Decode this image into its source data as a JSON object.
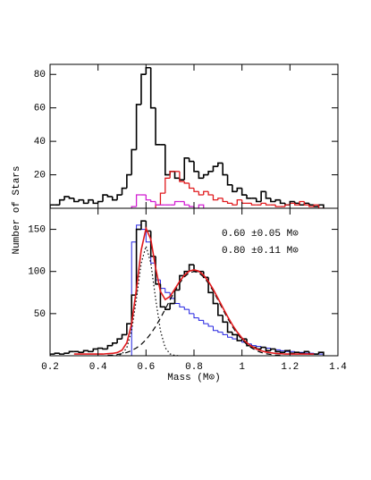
{
  "chart_data": [
    {
      "type": "histogram",
      "ylabel": "Number of Stars",
      "xlim": [
        0.2,
        1.4
      ],
      "xticks": [
        0.2,
        0.4,
        0.6,
        0.8,
        1,
        1.2,
        1.4
      ],
      "xticklabels": false,
      "ylim": [
        0,
        86
      ],
      "yticks": [
        20,
        40,
        60,
        80
      ],
      "series": [
        {
          "color": "#000000",
          "width": 1.6,
          "bins": [
            0.2,
            0.22,
            0.24,
            0.26,
            0.28,
            0.3,
            0.32,
            0.34,
            0.36,
            0.38,
            0.4,
            0.42,
            0.44,
            0.46,
            0.48,
            0.5,
            0.52,
            0.54,
            0.56,
            0.58,
            0.6,
            0.62,
            0.64,
            0.66,
            0.68,
            0.7,
            0.72,
            0.74,
            0.76,
            0.78,
            0.8,
            0.82,
            0.84,
            0.86,
            0.88,
            0.9,
            0.92,
            0.94,
            0.96,
            0.98,
            1,
            1.02,
            1.04,
            1.06,
            1.08,
            1.1,
            1.12,
            1.14,
            1.16,
            1.18,
            1.2,
            1.22,
            1.24,
            1.26,
            1.28,
            1.3,
            1.32,
            1.34
          ],
          "values": [
            2,
            2,
            5,
            7,
            6,
            4,
            5,
            3,
            5,
            3,
            4,
            8,
            7,
            5,
            8,
            12,
            20,
            35,
            62,
            80,
            84,
            60,
            38,
            38,
            20,
            22,
            18,
            17,
            30,
            28,
            22,
            18,
            20,
            22,
            25,
            27,
            20,
            14,
            10,
            12,
            8,
            6,
            6,
            4,
            10,
            6,
            4,
            5,
            3,
            2,
            4,
            3,
            2,
            3,
            2,
            1,
            2
          ]
        },
        {
          "color": "#e0191c",
          "width": 1.3,
          "bins": [
            0.64,
            0.66,
            0.68,
            0.7,
            0.72,
            0.74,
            0.76,
            0.78,
            0.8,
            0.82,
            0.84,
            0.86,
            0.88,
            0.9,
            0.92,
            0.94,
            0.96,
            0.98,
            1,
            1.02,
            1.04,
            1.06,
            1.08,
            1.1,
            1.12,
            1.14,
            1.16,
            1.18,
            1.2,
            1.22,
            1.24,
            1.26,
            1.28,
            1.3,
            1.32,
            1.34
          ],
          "values": [
            2,
            9,
            18,
            22,
            22,
            16,
            15,
            12,
            10,
            8,
            10,
            8,
            5,
            6,
            4,
            3,
            2,
            5,
            3,
            3,
            2,
            2,
            3,
            2,
            2,
            1,
            1,
            2,
            3,
            2,
            4,
            2,
            1,
            2,
            0
          ]
        },
        {
          "color": "#d21fd2",
          "width": 1.3,
          "bins": [
            0.54,
            0.56,
            0.58,
            0.6,
            0.62,
            0.64,
            0.66,
            0.68,
            0.7,
            0.72,
            0.74,
            0.76,
            0.78,
            0.8,
            0.82,
            0.84
          ],
          "values": [
            1,
            8,
            8,
            5,
            4,
            2,
            2,
            2,
            2,
            4,
            4,
            2,
            1,
            0,
            2
          ]
        }
      ]
    },
    {
      "type": "histogram",
      "xlabel": "Mass (M⊙)",
      "xlim": [
        0.2,
        1.4
      ],
      "xticks": [
        0.2,
        0.4,
        0.6,
        0.8,
        1,
        1.2,
        1.4
      ],
      "xticklabels": true,
      "ylim": [
        0,
        175
      ],
      "yticks": [
        50,
        100,
        150
      ],
      "annotations": [
        "0.60 ±0.05 M⊙",
        "0.80 ±0.11 M⊙"
      ],
      "series": [
        {
          "color": "#2020e0",
          "width": 1,
          "bins": [
            0.54,
            0.56,
            0.58,
            0.6,
            0.62,
            0.64,
            0.66,
            0.68,
            0.7,
            0.72,
            0.74,
            0.76,
            0.78,
            0.8,
            0.82,
            0.84,
            0.86,
            0.88,
            0.9,
            0.92,
            0.94,
            0.96,
            0.98,
            1,
            1.02,
            1.04,
            1.06,
            1.08,
            1.1,
            1.12,
            1.14,
            1.16,
            1.18,
            1.2,
            1.22,
            1.24,
            1.26,
            1.28,
            1.3,
            1.32,
            1.34
          ],
          "values": [
            135,
            155,
            150,
            135,
            110,
            90,
            80,
            75,
            68,
            62,
            58,
            55,
            50,
            45,
            42,
            38,
            35,
            30,
            28,
            25,
            22,
            20,
            18,
            16,
            14,
            12,
            11,
            10,
            9,
            8,
            7,
            6,
            5,
            5,
            4,
            4,
            3,
            3,
            2,
            2
          ]
        },
        {
          "color": "#000000",
          "width": 1.6,
          "bins": [
            0.2,
            0.22,
            0.24,
            0.26,
            0.28,
            0.3,
            0.32,
            0.34,
            0.36,
            0.38,
            0.4,
            0.42,
            0.44,
            0.46,
            0.48,
            0.5,
            0.52,
            0.54,
            0.56,
            0.58,
            0.6,
            0.62,
            0.64,
            0.66,
            0.68,
            0.7,
            0.72,
            0.74,
            0.76,
            0.78,
            0.8,
            0.82,
            0.84,
            0.86,
            0.88,
            0.9,
            0.92,
            0.94,
            0.96,
            0.98,
            1,
            1.02,
            1.04,
            1.06,
            1.08,
            1.1,
            1.12,
            1.14,
            1.16,
            1.18,
            1.2,
            1.22,
            1.24,
            1.26,
            1.28,
            1.3,
            1.32,
            1.34
          ],
          "values": [
            2,
            3,
            2,
            3,
            5,
            5,
            4,
            6,
            5,
            8,
            9,
            8,
            12,
            15,
            20,
            25,
            38,
            72,
            150,
            160,
            148,
            118,
            85,
            58,
            55,
            62,
            78,
            95,
            100,
            108,
            100,
            100,
            93,
            75,
            62,
            48,
            40,
            28,
            25,
            18,
            20,
            12,
            10,
            8,
            10,
            6,
            8,
            5,
            4,
            6,
            3,
            4,
            3,
            5,
            2,
            2,
            4
          ]
        },
        {
          "kind": "line",
          "style": "dotted",
          "color": "#000000",
          "width": 1.2,
          "x": [
            0.46,
            0.48,
            0.5,
            0.52,
            0.54,
            0.56,
            0.58,
            0.6,
            0.62,
            0.64,
            0.66,
            0.68,
            0.7,
            0.72,
            0.74
          ],
          "values": [
            0,
            0.3,
            2.2,
            9.5,
            29.9,
            67.6,
            110,
            130,
            110,
            67.6,
            29.9,
            9.5,
            2.2,
            0.3,
            0
          ]
        },
        {
          "kind": "line",
          "style": "dashed",
          "color": "#000000",
          "width": 1.2,
          "x": [
            0.44,
            0.46,
            0.48,
            0.5,
            0.52,
            0.54,
            0.56,
            0.58,
            0.6,
            0.62,
            0.64,
            0.66,
            0.68,
            0.7,
            0.72,
            0.74,
            0.76,
            0.78,
            0.8,
            0.82,
            0.84,
            0.86,
            0.88,
            0.9,
            0.92,
            0.94,
            0.96,
            0.98,
            1,
            1.02,
            1.04,
            1.06,
            1.08,
            1.1,
            1.12,
            1.14,
            1.16
          ],
          "values": [
            0.5,
            0.8,
            1.5,
            2.4,
            3.9,
            6.1,
            9.3,
            13.5,
            19.1,
            26.2,
            34.7,
            44.5,
            55.2,
            66.2,
            76.8,
            86.2,
            93.6,
            98.4,
            100,
            98.4,
            93.6,
            86.2,
            76.8,
            66.2,
            55.2,
            44.5,
            34.7,
            26.2,
            19.1,
            13.5,
            9.3,
            6.1,
            3.9,
            2.4,
            1.5,
            0.8,
            0.5
          ]
        },
        {
          "kind": "line",
          "style": "solid",
          "color": "#e0191c",
          "width": 1.6,
          "x": [
            0.3,
            0.32,
            0.34,
            0.36,
            0.38,
            0.4,
            0.42,
            0.44,
            0.46,
            0.48,
            0.5,
            0.52,
            0.54,
            0.56,
            0.58,
            0.6,
            0.62,
            0.64,
            0.66,
            0.68,
            0.7,
            0.72,
            0.74,
            0.76,
            0.78,
            0.8,
            0.82,
            0.84,
            0.86,
            0.88,
            0.9,
            0.92,
            0.94,
            0.96,
            0.98,
            1,
            1.02,
            1.04,
            1.06,
            1.08,
            1.1,
            1.12,
            1.14,
            1.16,
            1.18,
            1.2,
            1.22,
            1.24,
            1.26,
            1.28,
            1.3
          ],
          "values": [
            2,
            2,
            2,
            2,
            2,
            2,
            2,
            2.5,
            2.8,
            3.8,
            6.6,
            15.4,
            38,
            78.9,
            125.5,
            151.1,
            138.2,
            104.3,
            76.4,
            66.7,
            70.4,
            79.1,
            88.2,
            95.6,
            100.4,
            102,
            100.4,
            95.6,
            88.2,
            78.8,
            68.2,
            57.2,
            46.5,
            36.7,
            28.2,
            21.1,
            15.5,
            11.3,
            8.1,
            5.9,
            4.4,
            3.5,
            2.8,
            2.5,
            2,
            2,
            2,
            2,
            2,
            2,
            2
          ]
        }
      ]
    }
  ]
}
